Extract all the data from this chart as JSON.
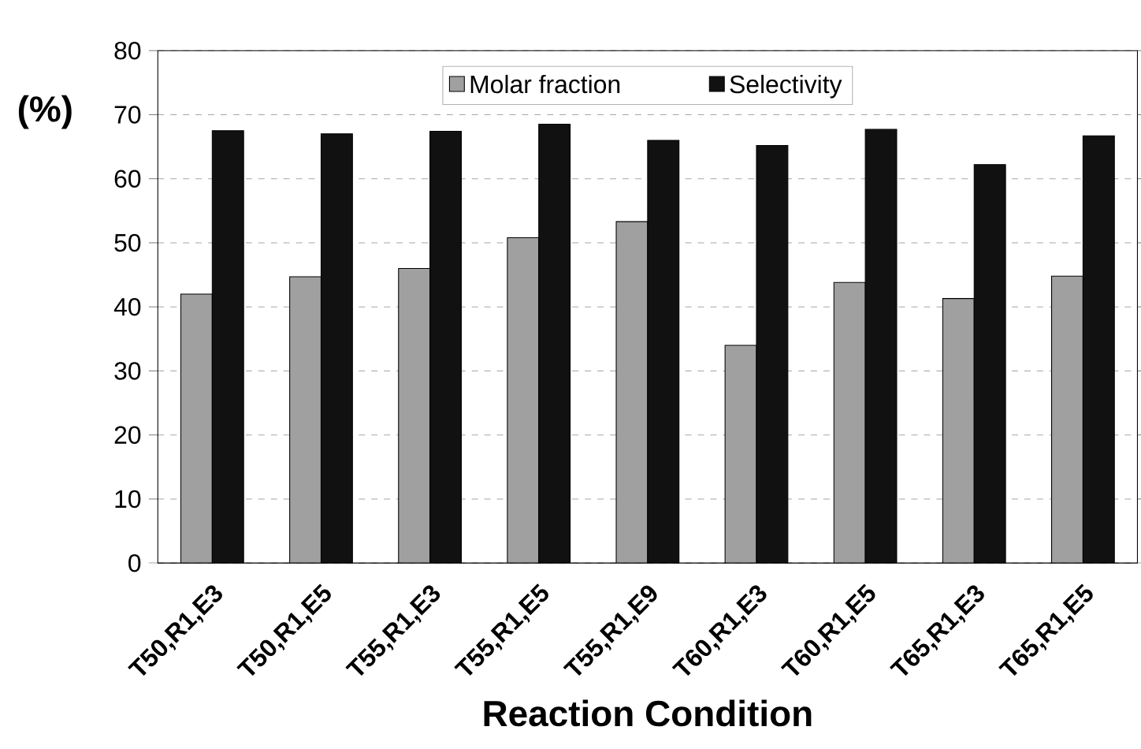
{
  "chart_data": {
    "type": "bar",
    "xlabel": "Reaction Condition",
    "ylabel": "(%)",
    "categories": [
      "T50,R1,E3",
      "T50,R1,E5",
      "T55,R1,E3",
      "T55,R1,E5",
      "T55,R1,E9",
      "T60,R1,E3",
      "T60,R1,E5",
      "T65,R1,E3",
      "T65,R1,E5"
    ],
    "series": [
      {
        "name": "Molar fraction",
        "color": "#a0a0a0",
        "values": [
          42,
          44.7,
          46,
          50.8,
          53.3,
          34,
          43.8,
          41.3,
          44.8
        ]
      },
      {
        "name": "Selectivity",
        "color": "#111111",
        "values": [
          67.5,
          67,
          67.4,
          68.5,
          66,
          65.2,
          67.7,
          62.2,
          66.7
        ]
      }
    ],
    "ylim": [
      0,
      80
    ],
    "yticks": [
      0,
      10,
      20,
      30,
      40,
      50,
      60,
      70,
      80
    ],
    "grid": "y",
    "legend": "top"
  }
}
